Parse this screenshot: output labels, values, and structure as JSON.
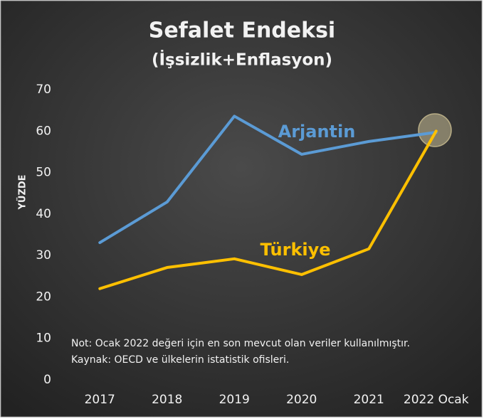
{
  "chart_data": {
    "type": "line",
    "title": "Sefalet Endeksi",
    "subtitle": "(İşsizlik+Enflasyon)",
    "y_label": "YÜZDE",
    "categories": [
      "2017",
      "2018",
      "2019",
      "2020",
      "2021",
      "2022 Ocak"
    ],
    "series": [
      {
        "name": "Arjantin",
        "color": "#5b9bd5",
        "values": [
          33.1,
          42.9,
          63.6,
          54.4,
          57.5,
          59.7
        ]
      },
      {
        "name": "Türkiye",
        "color": "#ffc000",
        "values": [
          22.0,
          27.1,
          29.2,
          25.4,
          31.6,
          60.0
        ]
      }
    ],
    "ylim": [
      0,
      70
    ],
    "yticks": [
      0,
      10,
      20,
      30,
      40,
      50,
      60,
      70
    ],
    "grid": false,
    "annotations": [
      "Not: Ocak 2022 değeri için en son mevcut olan veriler kullanılmıştır.",
      "Kaynak: OECD ve ülkelerin istatistik ofisleri."
    ]
  }
}
